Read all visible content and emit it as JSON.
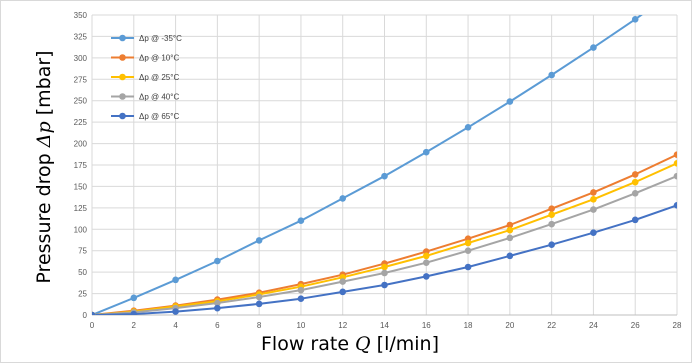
{
  "chart_data": {
    "type": "line",
    "xlabel": {
      "prefix": "Flow rate ",
      "variable": "Q",
      "suffix": " [l/min]"
    },
    "ylabel": {
      "prefix": "Pressure drop ",
      "variable": "Δp",
      "suffix": " [mbar]"
    },
    "xlim": [
      0,
      28
    ],
    "ylim": [
      0,
      350
    ],
    "x_ticks": [
      "0",
      "2",
      "4",
      "6",
      "8",
      "10",
      "12",
      "14",
      "16",
      "18",
      "20",
      "22",
      "24",
      "26",
      "28"
    ],
    "y_ticks": [
      "0",
      "25",
      "50",
      "75",
      "100",
      "125",
      "150",
      "175",
      "200",
      "225",
      "250",
      "275",
      "300",
      "325",
      "350"
    ],
    "grid": true,
    "legend_position": "top-left",
    "x": [
      0,
      2,
      4,
      6,
      8,
      10,
      12,
      14,
      16,
      18,
      20,
      22,
      24,
      26,
      28
    ],
    "series": [
      {
        "name": "Δp @ -35°C",
        "color": "#5b9bd5",
        "values": [
          0,
          20,
          41,
          63,
          87,
          110,
          136,
          162,
          190,
          219,
          249,
          280,
          312,
          345,
          380
        ]
      },
      {
        "name": "Δp @ 10°C",
        "color": "#ed7d31",
        "values": [
          0,
          5,
          11,
          18,
          26,
          36,
          47,
          60,
          74,
          89,
          105,
          124,
          143,
          164,
          187
        ]
      },
      {
        "name": "Δp @ 25°C",
        "color": "#ffc000",
        "values": [
          0,
          4,
          10,
          16,
          24,
          33,
          44,
          56,
          69,
          84,
          99,
          117,
          135,
          155,
          177
        ]
      },
      {
        "name": "Δp @ 40°C",
        "color": "#a5a5a5",
        "values": [
          0,
          3,
          8,
          14,
          21,
          29,
          39,
          49,
          61,
          75,
          90,
          106,
          123,
          142,
          162
        ]
      },
      {
        "name": "Δp @ 65°C",
        "color": "#4472c4",
        "values": [
          0,
          1,
          4,
          8,
          13,
          19,
          27,
          35,
          45,
          56,
          69,
          82,
          96,
          111,
          128
        ]
      }
    ]
  }
}
